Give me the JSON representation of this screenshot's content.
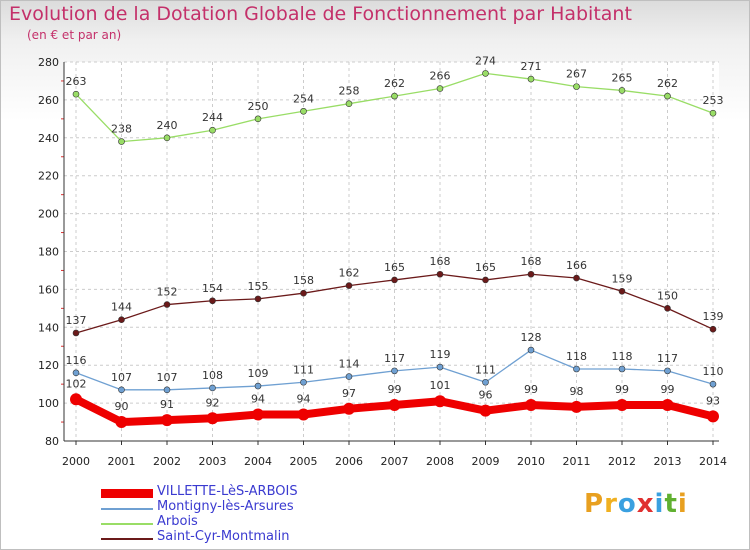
{
  "title": "Evolution de la Dotation Globale de Fonctionnement par Habitant",
  "subtitle": "(en € et par an)",
  "logo": "Proxiti",
  "chart_data": {
    "type": "line",
    "title": "Evolution de la Dotation Globale de Fonctionnement par Habitant",
    "subtitle": "(en € et par an)",
    "x": [
      "2000",
      "2001",
      "2002",
      "2003",
      "2004",
      "2005",
      "2006",
      "2007",
      "2008",
      "2009",
      "2010",
      "2011",
      "2012",
      "2013",
      "2014"
    ],
    "ylim": [
      80,
      280
    ],
    "yticks": [
      80,
      100,
      120,
      140,
      160,
      180,
      200,
      220,
      240,
      260,
      280
    ],
    "grid": true,
    "legend_position": "bottom-left",
    "series": [
      {
        "name": "VILLETTE-LèS-ARBOIS",
        "color": "#ee0000",
        "width": 8,
        "values": [
          102,
          90,
          91,
          92,
          94,
          94,
          97,
          99,
          101,
          96,
          99,
          98,
          99,
          99,
          93
        ]
      },
      {
        "name": "Montigny-lès-Arsures",
        "color": "#6fa0d2",
        "width": 1.3,
        "values": [
          116,
          107,
          107,
          108,
          109,
          111,
          114,
          117,
          119,
          111,
          128,
          118,
          118,
          117,
          110
        ]
      },
      {
        "name": "Arbois",
        "color": "#99dd66",
        "width": 1.3,
        "values": [
          263,
          238,
          240,
          244,
          250,
          254,
          258,
          262,
          266,
          274,
          271,
          267,
          265,
          262,
          253
        ]
      },
      {
        "name": "Saint-Cyr-Montmalin",
        "color": "#6b1a1a",
        "width": 1.3,
        "values": [
          137,
          144,
          152,
          154,
          155,
          158,
          162,
          165,
          168,
          165,
          168,
          166,
          159,
          150,
          139
        ]
      }
    ]
  }
}
